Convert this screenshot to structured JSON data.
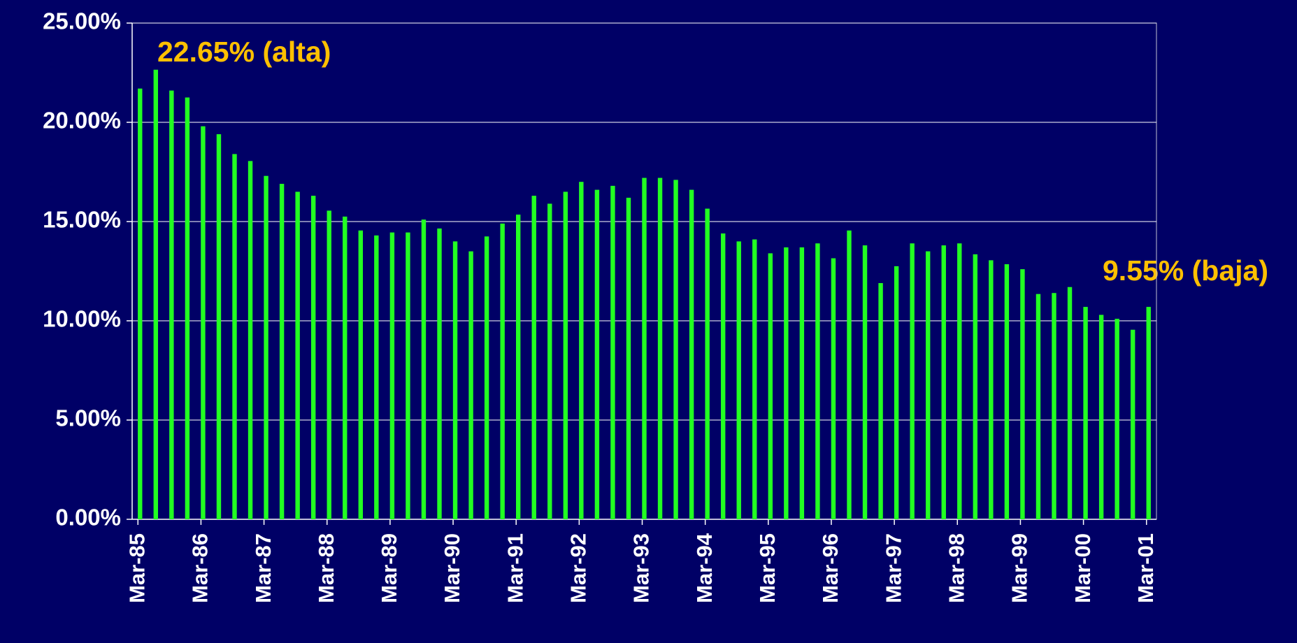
{
  "chart_data": {
    "type": "bar",
    "categories": [
      "Mar-85",
      null,
      null,
      null,
      "Mar-86",
      null,
      null,
      null,
      "Mar-87",
      null,
      null,
      null,
      "Mar-88",
      null,
      null,
      null,
      "Mar-89",
      null,
      null,
      null,
      "Mar-90",
      null,
      null,
      null,
      "Mar-91",
      null,
      null,
      null,
      "Mar-92",
      null,
      null,
      null,
      "Mar-93",
      null,
      null,
      null,
      "Mar-94",
      null,
      null,
      null,
      "Mar-95",
      null,
      null,
      null,
      "Mar-96",
      null,
      null,
      null,
      "Mar-97",
      null,
      null,
      null,
      "Mar-98",
      null,
      null,
      null,
      "Mar-99",
      null,
      null,
      null,
      "Mar-00",
      null,
      null,
      null,
      "Mar-01"
    ],
    "values": [
      21.7,
      22.65,
      21.6,
      21.25,
      19.8,
      19.4,
      18.4,
      18.05,
      17.3,
      16.9,
      16.5,
      16.3,
      15.55,
      15.25,
      14.55,
      14.3,
      14.45,
      14.45,
      15.1,
      14.65,
      14.0,
      13.5,
      14.25,
      14.9,
      15.35,
      16.3,
      15.9,
      16.5,
      17.0,
      16.6,
      16.8,
      16.2,
      17.2,
      17.2,
      17.1,
      16.6,
      15.65,
      14.4,
      14.0,
      14.1,
      13.4,
      13.7,
      13.7,
      13.9,
      13.15,
      14.55,
      13.8,
      11.9,
      12.75,
      13.9,
      13.5,
      13.8,
      13.9,
      13.35,
      13.05,
      12.85,
      12.6,
      11.35,
      11.4,
      11.7,
      10.7,
      10.3,
      10.1,
      9.55,
      10.7
    ],
    "color": "#22ff22",
    "ylim": [
      0,
      25
    ],
    "yticks": [
      {
        "value": 0,
        "label": "0.00%"
      },
      {
        "value": 5,
        "label": "5.00%"
      },
      {
        "value": 10,
        "label": "10.00%"
      },
      {
        "value": 15,
        "label": "15.00%"
      },
      {
        "value": 20,
        "label": "20.00%"
      },
      {
        "value": 25,
        "label": "25.00%"
      }
    ],
    "grid": true,
    "annotations": [
      "22.65% (alta)",
      "9.55% (baja)"
    ]
  }
}
